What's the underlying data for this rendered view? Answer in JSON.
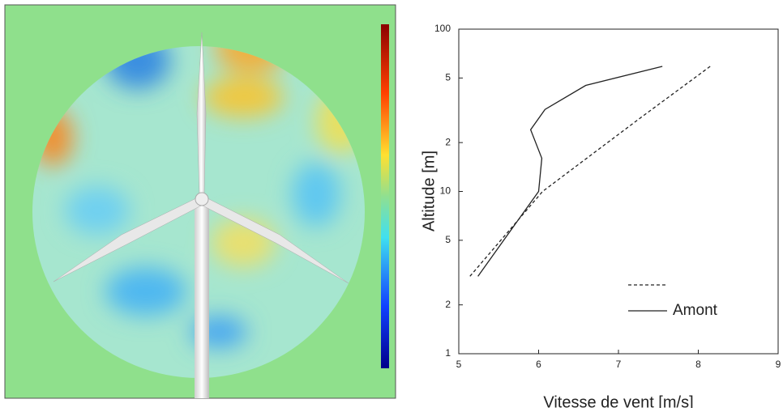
{
  "chart_data": {
    "type": "line",
    "xlabel": "Vitesse de vent [m/s]",
    "ylabel": "Altitude [m]",
    "xlim": [
      5,
      9
    ],
    "xticks": [
      5,
      6,
      7,
      8,
      9
    ],
    "ylim": [
      1,
      100
    ],
    "yscale": "log",
    "yticks": [
      1,
      2,
      5,
      10,
      {
        "value": 20,
        "label": "2"
      },
      {
        "value": 50,
        "label": "5"
      },
      100
    ],
    "series": [
      {
        "dash": true,
        "color": "#222222",
        "x": [
          5.14,
          6.05,
          7.3,
          8.15
        ],
        "values": [
          3,
          10,
          29,
          59
        ]
      },
      {
        "name": "Amont",
        "dash": false,
        "color": "#222222",
        "x": [
          5.24,
          6.0,
          6.04,
          5.9,
          6.08,
          6.59,
          7.55
        ],
        "values": [
          3,
          10,
          16,
          24,
          32,
          45,
          59
        ]
      }
    ]
  }
}
